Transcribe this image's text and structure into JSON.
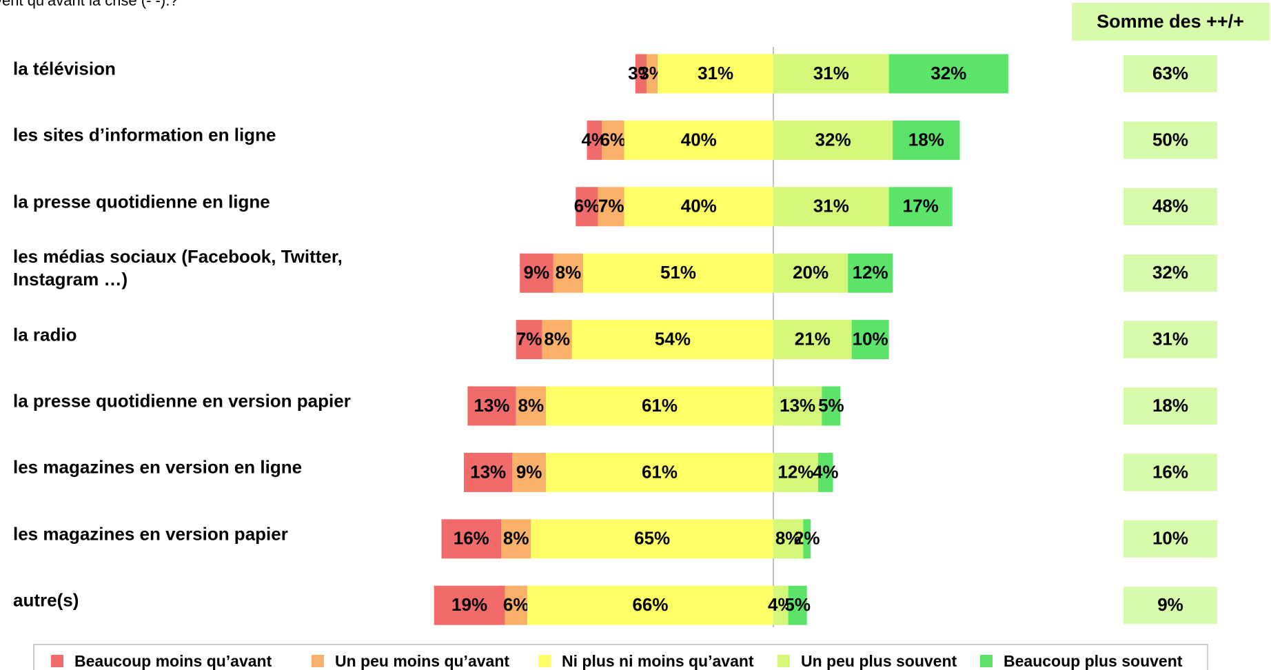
{
  "chart_data": {
    "type": "diverging_bar",
    "subtitle": "vent qu’avant la crise (- -).?",
    "categories": [
      "la télévision",
      "les sites d’information en ligne",
      "la presse quotidienne en ligne",
      "les médias sociaux (Facebook, Twitter,\nInstagram …)",
      "la radio",
      "la presse quotidienne en version papier",
      "les magazines en version en ligne",
      "les magazines en version papier",
      "autre(s)"
    ],
    "series": [
      {
        "name": "Beaucoup moins qu’avant",
        "color": "#f26b6b",
        "side": "left",
        "values": [
          3,
          4,
          6,
          9,
          7,
          13,
          13,
          16,
          19
        ],
        "value_labels": [
          "3%",
          "4%",
          "6%",
          "9%",
          "7%",
          "13%",
          "13%",
          "16%",
          "19%"
        ]
      },
      {
        "name": "Un peu moins qu’avant",
        "color": "#f9b068",
        "side": "left",
        "values": [
          3,
          6,
          7,
          8,
          8,
          8,
          9,
          8,
          6
        ],
        "value_labels": [
          "3%",
          "6%",
          "7%",
          "8%",
          "8%",
          "8%",
          "9%",
          "8%",
          "6%"
        ]
      },
      {
        "name": "Ni plus ni moins qu’avant",
        "color": "#ffff66",
        "side": "left",
        "values": [
          31,
          40,
          40,
          51,
          54,
          61,
          61,
          65,
          66
        ],
        "value_labels": [
          "31%",
          "40%",
          "40%",
          "51%",
          "54%",
          "61%",
          "61%",
          "65%",
          "66%"
        ]
      },
      {
        "name": "Un peu plus souvent",
        "color": "#d4f77a",
        "side": "right",
        "values": [
          31,
          32,
          31,
          20,
          21,
          13,
          12,
          8,
          4
        ],
        "value_labels": [
          "31%",
          "32%",
          "31%",
          "20%",
          "21%",
          "13%",
          "12%",
          "8%",
          "4%"
        ]
      },
      {
        "name": "Beaucoup plus souvent",
        "color": "#5ce36a",
        "side": "right",
        "values": [
          32,
          18,
          17,
          12,
          10,
          5,
          4,
          2,
          5
        ],
        "value_labels": [
          "32%",
          "18%",
          "17%",
          "12%",
          "10%",
          "5%",
          "4%",
          "2%",
          "5%"
        ]
      }
    ],
    "totals_title": "Somme des ++/+",
    "totals": [
      63,
      50,
      48,
      32,
      31,
      18,
      16,
      10,
      9
    ],
    "totals_labels": [
      "63%",
      "50%",
      "48%",
      "32%",
      "31%",
      "18%",
      "16%",
      "10%",
      "9%"
    ],
    "totals_color": "#d7fbaa"
  }
}
